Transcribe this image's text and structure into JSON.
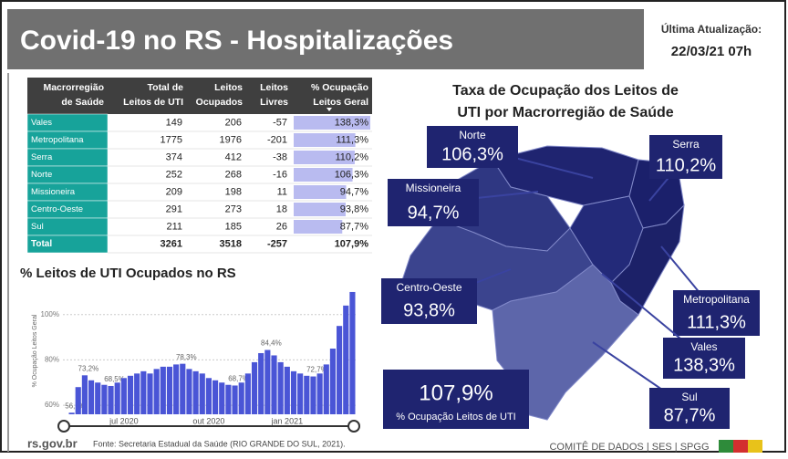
{
  "header": {
    "title": "Covid-19 no RS - Hospitalizações",
    "update_label": "Última Atualização:",
    "update_value": "22/03/21 07h"
  },
  "table": {
    "columns": [
      [
        "Macrorregião",
        "de Saúde"
      ],
      [
        "Total de",
        "Leitos de UTI"
      ],
      [
        "Leitos",
        "Ocupados"
      ],
      [
        "Leitos",
        "Livres"
      ],
      [
        "% Ocupação",
        "Leitos Geral"
      ]
    ],
    "rows": [
      {
        "region": "Vales",
        "total": 149,
        "occupied": 206,
        "free": -57,
        "pct": 138.3,
        "pct_label": "138,3%"
      },
      {
        "region": "Metropolitana",
        "total": 1775,
        "occupied": 1976,
        "free": -201,
        "pct": 111.3,
        "pct_label": "111,3%"
      },
      {
        "region": "Serra",
        "total": 374,
        "occupied": 412,
        "free": -38,
        "pct": 110.2,
        "pct_label": "110,2%"
      },
      {
        "region": "Norte",
        "total": 252,
        "occupied": 268,
        "free": -16,
        "pct": 106.3,
        "pct_label": "106,3%"
      },
      {
        "region": "Missioneira",
        "total": 209,
        "occupied": 198,
        "free": 11,
        "pct": 94.7,
        "pct_label": "94,7%"
      },
      {
        "region": "Centro-Oeste",
        "total": 291,
        "occupied": 273,
        "free": 18,
        "pct": 93.8,
        "pct_label": "93,8%"
      },
      {
        "region": "Sul",
        "total": 211,
        "occupied": 185,
        "free": 26,
        "pct": 87.7,
        "pct_label": "87,7%"
      }
    ],
    "total": {
      "region": "Total",
      "total": 3261,
      "occupied": 3518,
      "free": -257,
      "pct_label": "107,9%"
    }
  },
  "chart_data": [
    {
      "type": "bar",
      "title": "% Leitos de UTI Ocupados no RS",
      "ylabel": "% Ocupação Leitos Geral",
      "color": "#4a55d6",
      "categories": [
        null,
        null,
        null,
        null,
        null,
        null,
        null,
        null,
        "jul 2020",
        null,
        null,
        null,
        null,
        null,
        null,
        null,
        null,
        null,
        null,
        null,
        null,
        "out 2020",
        null,
        null,
        null,
        null,
        null,
        null,
        null,
        null,
        null,
        null,
        null,
        "jan 2021",
        null,
        null,
        null,
        null,
        null,
        null,
        null,
        null,
        null,
        null
      ],
      "values": [
        56.7,
        68,
        73.2,
        71,
        70,
        69,
        68.5,
        70,
        72,
        73,
        74,
        75,
        74,
        76,
        77,
        77,
        78,
        78.3,
        76,
        75,
        74,
        72,
        71,
        70,
        69,
        68.7,
        70,
        74,
        79,
        83,
        84.4,
        82,
        79,
        77,
        75,
        74,
        73,
        72.7,
        74,
        78,
        85,
        95,
        104,
        110
      ],
      "value_labels": [
        "56,7%",
        null,
        "73,2%",
        null,
        null,
        null,
        "68,5%",
        null,
        null,
        null,
        null,
        null,
        null,
        null,
        null,
        null,
        null,
        "78,3%",
        null,
        null,
        null,
        null,
        null,
        null,
        null,
        "68,7%",
        null,
        null,
        null,
        null,
        "84,4%",
        null,
        null,
        null,
        null,
        null,
        null,
        "72,7%",
        null,
        null,
        null,
        null,
        null,
        null
      ],
      "ylim": [
        56,
        112
      ],
      "yticks": [
        {
          "value": 60,
          "label": "60%"
        },
        {
          "value": 80,
          "label": "80%"
        },
        {
          "value": 100,
          "label": "100%"
        }
      ],
      "grid": true
    },
    {
      "type": "map",
      "title": "Taxa de Ocupação dos Leitos de UTI por Macrorregião de Saúde",
      "categories": [
        "Norte",
        "Missioneira",
        "Serra",
        "Centro-Oeste",
        "Metropolitana",
        "Vales",
        "Sul"
      ],
      "values": [
        106.3,
        94.7,
        110.2,
        93.8,
        111.3,
        138.3,
        87.7
      ],
      "value_labels": [
        "106,3%",
        "94,7%",
        "110,2%",
        "93,8%",
        "111,3%",
        "138,3%",
        "87,7%"
      ],
      "colors": [
        "#1f2470",
        "#2f3782",
        "#1b206b",
        "#3b448e",
        "#1c2168",
        "#232a79",
        "#5d66aa"
      ],
      "total": {
        "value": 107.9,
        "value_label": "107,9%",
        "label": "% Ocupação Leitos de UTI"
      }
    }
  ],
  "footer": {
    "site": "rs.gov.br",
    "source": "Fonte: Secretaria Estadual da Saúde (RIO GRANDE DO SUL, 2021).",
    "credits": "COMITÊ DE DADOS | SES | SPGG"
  }
}
